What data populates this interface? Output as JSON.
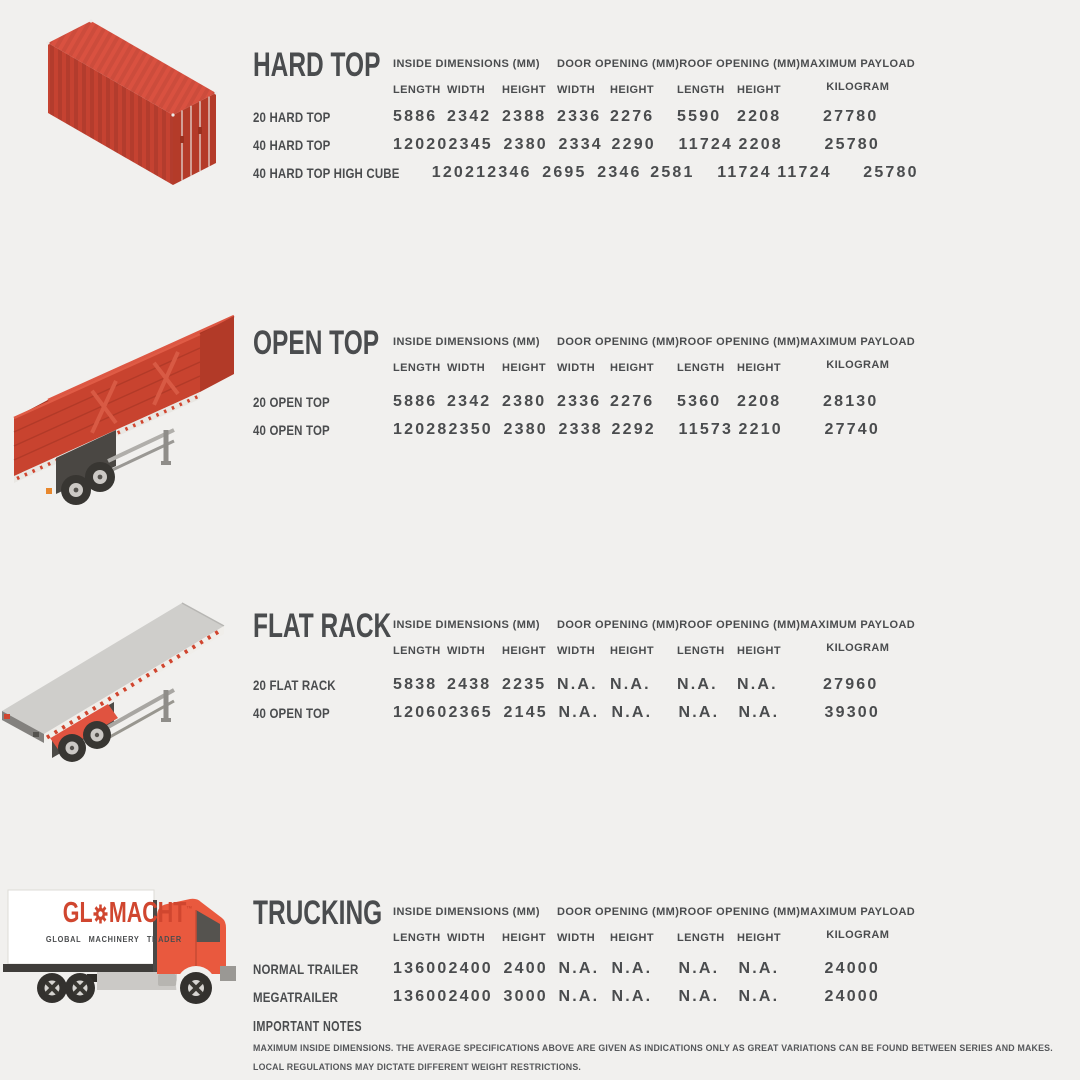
{
  "palette": {
    "background": "#f1f0ee",
    "text": "#4a4c4e",
    "container_red": "#c8432f",
    "logo_red": "#d0462f"
  },
  "columns": {
    "group1": "INSIDE DIMENSIONS (MM)",
    "group2": "DOOR OPENING (MM)",
    "group3": "ROOF OPENING (MM)",
    "group4_line1": "MAXIMUM PAYLOAD",
    "group4_line2": "KILOGRAM",
    "sub": [
      "LENGTH",
      "WIDTH",
      "HEIGHT",
      "WIDTH",
      "HEIGHT",
      "LENGTH",
      "HEIGHT"
    ]
  },
  "sections": [
    {
      "title": "HARD TOP",
      "illustration": "hard-top-container",
      "rows": [
        {
          "label": "20 HARD TOP",
          "values": [
            "5886",
            "2342",
            "2388",
            "2336",
            "2276",
            "5590",
            "2208",
            "27780"
          ]
        },
        {
          "label": "40 HARD TOP",
          "values": [
            "12020",
            "2345",
            "2380",
            "2334",
            "2290",
            "11724",
            "2208",
            "25780"
          ]
        },
        {
          "label": "40 HARD TOP HIGH CUBE",
          "values": [
            "12021",
            "2346",
            "2695",
            "2346",
            "2581",
            "11724",
            "11724",
            "25780"
          ]
        }
      ]
    },
    {
      "title": "OPEN TOP",
      "illustration": "open-top-trailer",
      "rows": [
        {
          "label": "20 OPEN TOP",
          "values": [
            "5886",
            "2342",
            "2380",
            "2336",
            "2276",
            "5360",
            "2208",
            "28130"
          ]
        },
        {
          "label": "40 OPEN TOP",
          "values": [
            "12028",
            "2350",
            "2380",
            "2338",
            "2292",
            "11573",
            "2210",
            "27740"
          ]
        }
      ]
    },
    {
      "title": "FLAT RACK",
      "illustration": "flat-rack-trailer",
      "rows": [
        {
          "label": "20 FLAT RACK",
          "values": [
            "5838",
            "2438",
            "2235",
            "N.A.",
            "N.A.",
            "N.A.",
            "N.A.",
            "27960"
          ]
        },
        {
          "label": "40 OPEN TOP",
          "values": [
            "12060",
            "2365",
            "2145",
            "N.A.",
            "N.A.",
            "N.A.",
            "N.A.",
            "39300"
          ]
        }
      ]
    },
    {
      "title": "TRUCKING",
      "illustration": "box-truck",
      "rows": [
        {
          "label": "NORMAL TRAILER",
          "values": [
            "13600",
            "2400",
            "2400",
            "N.A.",
            "N.A.",
            "N.A.",
            "N.A.",
            "24000"
          ]
        },
        {
          "label": "MEGATRAILER",
          "values": [
            "13600",
            "2400",
            "3000",
            "N.A.",
            "N.A.",
            "N.A.",
            "N.A.",
            "24000"
          ]
        }
      ]
    }
  ],
  "truck_logo": {
    "prefix": "GL",
    "suffix": "MACHT",
    "mark": "™",
    "tagline": "GLOBAL MACHINERY TRADER"
  },
  "notes": {
    "title": "IMPORTANT NOTES",
    "line1": "MAXIMUM INSIDE DIMENSIONS. THE AVERAGE SPECIFICATIONS ABOVE ARE GIVEN AS INDICATIONS ONLY AS GREAT VARIATIONS CAN BE FOUND BETWEEN SERIES AND MAKES.",
    "line2": "LOCAL REGULATIONS MAY DICTATE DIFFERENT WEIGHT RESTRICTIONS."
  }
}
